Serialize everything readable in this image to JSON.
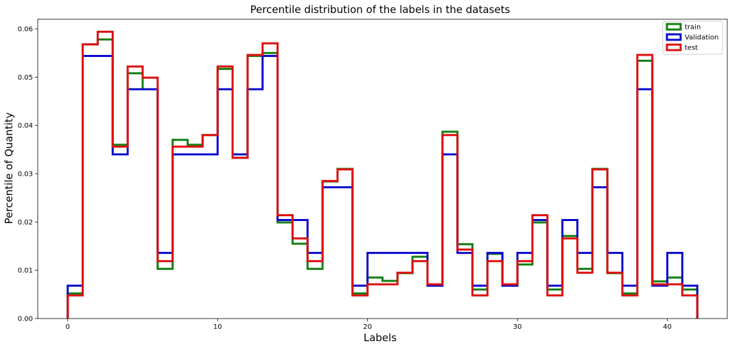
{
  "chart_data": {
    "type": "line",
    "style": "step-histogram",
    "title": "Percentile distribution of the labels in the datasets",
    "xlabel": "Labels",
    "ylabel": "Percentile of Quantity",
    "xlim": [
      -2,
      44
    ],
    "ylim": [
      0,
      0.062
    ],
    "xticks": [
      0,
      10,
      20,
      30,
      40
    ],
    "xtick_labels": [
      "0",
      "10",
      "20",
      "30",
      "40"
    ],
    "yticks": [
      0,
      0.01,
      0.02,
      0.03,
      0.04,
      0.05,
      0.06
    ],
    "ytick_labels": [
      "0.00",
      "0.01",
      "0.02",
      "0.03",
      "0.04",
      "0.05",
      "0.06"
    ],
    "grid": false,
    "legend_position": "top-right",
    "bin_edges": [
      0,
      1,
      2,
      3,
      4,
      5,
      6,
      7,
      8,
      9,
      10,
      11,
      12,
      13,
      14,
      15,
      16,
      17,
      18,
      19,
      20,
      21,
      22,
      23,
      24,
      25,
      26,
      27,
      28,
      29,
      30,
      31,
      32,
      33,
      34,
      35,
      36,
      37,
      38,
      39,
      40,
      41,
      42
    ],
    "series": [
      {
        "name": "train",
        "color": "#137f13",
        "values": [
          0.0052,
          0.0568,
          0.0578,
          0.036,
          0.0508,
          0.0475,
          0.0103,
          0.037,
          0.036,
          0.038,
          0.0517,
          0.0333,
          0.0544,
          0.055,
          0.0199,
          0.0155,
          0.0103,
          0.0284,
          0.031,
          0.0052,
          0.0085,
          0.0078,
          0.0094,
          0.0128,
          0.0068,
          0.0387,
          0.0154,
          0.006,
          0.0134,
          0.0068,
          0.0112,
          0.0199,
          0.006,
          0.0171,
          0.0103,
          0.031,
          0.0094,
          0.0052,
          0.0534,
          0.0077,
          0.0085,
          0.006
        ]
      },
      {
        "name": "Validation",
        "color": "#0b0bce",
        "values": [
          0.0068,
          0.0544,
          0.0544,
          0.034,
          0.0475,
          0.0475,
          0.0136,
          0.034,
          0.034,
          0.034,
          0.0475,
          0.034,
          0.0475,
          0.0544,
          0.0204,
          0.0204,
          0.0136,
          0.0272,
          0.0272,
          0.0068,
          0.0136,
          0.0136,
          0.0136,
          0.0136,
          0.0068,
          0.034,
          0.0136,
          0.0068,
          0.0136,
          0.0068,
          0.0136,
          0.0204,
          0.0068,
          0.0204,
          0.0136,
          0.0272,
          0.0136,
          0.0068,
          0.0475,
          0.0068,
          0.0136,
          0.0068
        ]
      },
      {
        "name": "test",
        "color": "#dd1010",
        "values": [
          0.0048,
          0.0568,
          0.0594,
          0.0356,
          0.0522,
          0.0499,
          0.0119,
          0.0356,
          0.0356,
          0.038,
          0.0522,
          0.0333,
          0.0546,
          0.057,
          0.0214,
          0.0166,
          0.0119,
          0.0285,
          0.0309,
          0.0048,
          0.0071,
          0.0071,
          0.0095,
          0.0119,
          0.0071,
          0.038,
          0.0143,
          0.0048,
          0.0119,
          0.0071,
          0.0119,
          0.0214,
          0.0048,
          0.0166,
          0.0095,
          0.0309,
          0.0095,
          0.0048,
          0.0546,
          0.0071,
          0.0071,
          0.0048
        ]
      }
    ]
  }
}
